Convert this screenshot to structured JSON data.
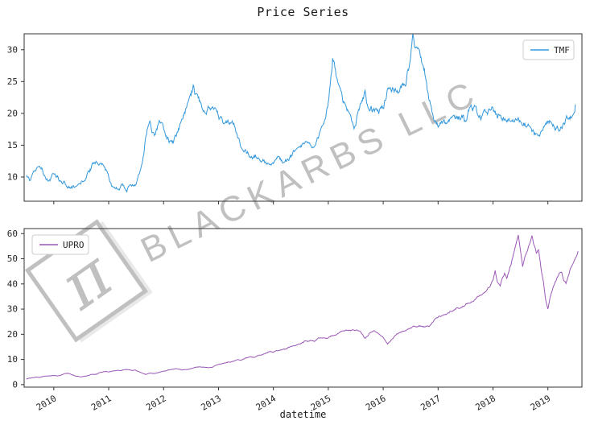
{
  "title": "Price Series",
  "xlabel": "datetime",
  "watermark": {
    "text": "BLACKARBS LLC",
    "symbol": "π"
  },
  "style": {
    "spine_color": "#333333",
    "tick_color": "#262626",
    "legend_border": "#cccccc",
    "tmf_color": "#3498db",
    "upro_color": "#9b59b6"
  },
  "chart_data": [
    {
      "type": "line",
      "series_name": "TMF",
      "color": "#3498db",
      "legend": "upper right",
      "xlim": [
        2009.46,
        2019.62
      ],
      "ylim": [
        6.2,
        32.5
      ],
      "xticks": [
        2010,
        2011,
        2012,
        2013,
        2014,
        2015,
        2016,
        2017,
        2018,
        2019
      ],
      "yticks": [
        10,
        15,
        20,
        25,
        30
      ],
      "points": [
        [
          2009.5,
          10.0
        ],
        [
          2009.58,
          9.2
        ],
        [
          2009.63,
          10.3
        ],
        [
          2009.71,
          11.0
        ],
        [
          2009.79,
          11.3
        ],
        [
          2009.83,
          10.4
        ],
        [
          2009.92,
          9.7
        ],
        [
          2010.0,
          10.7
        ],
        [
          2010.08,
          10.1
        ],
        [
          2010.17,
          9.4
        ],
        [
          2010.25,
          8.8
        ],
        [
          2010.33,
          8.3
        ],
        [
          2010.42,
          8.1
        ],
        [
          2010.5,
          8.8
        ],
        [
          2010.58,
          10.0
        ],
        [
          2010.67,
          11.3
        ],
        [
          2010.71,
          12.0
        ],
        [
          2010.79,
          12.9
        ],
        [
          2010.83,
          12.3
        ],
        [
          2010.92,
          11.0
        ],
        [
          2011.0,
          9.9
        ],
        [
          2011.08,
          8.5
        ],
        [
          2011.17,
          8.0
        ],
        [
          2011.25,
          8.4
        ],
        [
          2011.33,
          7.8
        ],
        [
          2011.42,
          8.5
        ],
        [
          2011.5,
          9.3
        ],
        [
          2011.54,
          10.5
        ],
        [
          2011.63,
          13.5
        ],
        [
          2011.67,
          16.0
        ],
        [
          2011.75,
          19.7
        ],
        [
          2011.79,
          17.8
        ],
        [
          2011.83,
          17.0
        ],
        [
          2011.92,
          19.2
        ],
        [
          2012.0,
          17.2
        ],
        [
          2012.08,
          16.2
        ],
        [
          2012.17,
          15.3
        ],
        [
          2012.25,
          16.3
        ],
        [
          2012.33,
          18.3
        ],
        [
          2012.42,
          20.3
        ],
        [
          2012.5,
          22.3
        ],
        [
          2012.54,
          23.4
        ],
        [
          2012.63,
          21.8
        ],
        [
          2012.67,
          21.0
        ],
        [
          2012.75,
          20.3
        ],
        [
          2012.83,
          21.6
        ],
        [
          2012.92,
          20.2
        ],
        [
          2013.0,
          19.2
        ],
        [
          2013.08,
          18.2
        ],
        [
          2013.17,
          18.9
        ],
        [
          2013.25,
          19.6
        ],
        [
          2013.33,
          17.2
        ],
        [
          2013.42,
          15.2
        ],
        [
          2013.5,
          14.2
        ],
        [
          2013.58,
          13.3
        ],
        [
          2013.67,
          13.9
        ],
        [
          2013.75,
          13.1
        ],
        [
          2013.83,
          12.7
        ],
        [
          2013.92,
          11.9
        ],
        [
          2014.0,
          11.6
        ],
        [
          2014.08,
          12.6
        ],
        [
          2014.17,
          12.3
        ],
        [
          2014.25,
          12.9
        ],
        [
          2014.33,
          13.3
        ],
        [
          2014.42,
          13.7
        ],
        [
          2014.5,
          14.3
        ],
        [
          2014.58,
          14.9
        ],
        [
          2014.67,
          14.6
        ],
        [
          2014.75,
          15.6
        ],
        [
          2014.83,
          16.6
        ],
        [
          2014.92,
          17.6
        ],
        [
          2015.0,
          21.0
        ],
        [
          2015.04,
          24.5
        ],
        [
          2015.08,
          28.4
        ],
        [
          2015.13,
          26.0
        ],
        [
          2015.17,
          24.0
        ],
        [
          2015.25,
          22.2
        ],
        [
          2015.33,
          20.0
        ],
        [
          2015.42,
          18.6
        ],
        [
          2015.5,
          18.2
        ],
        [
          2015.58,
          20.6
        ],
        [
          2015.67,
          22.6
        ],
        [
          2015.71,
          21.4
        ],
        [
          2015.75,
          20.6
        ],
        [
          2015.83,
          20.1
        ],
        [
          2015.92,
          19.6
        ],
        [
          2016.0,
          20.6
        ],
        [
          2016.08,
          23.6
        ],
        [
          2016.17,
          24.6
        ],
        [
          2016.25,
          23.1
        ],
        [
          2016.33,
          23.6
        ],
        [
          2016.42,
          25.1
        ],
        [
          2016.5,
          28.1
        ],
        [
          2016.54,
          31.2
        ],
        [
          2016.58,
          30.1
        ],
        [
          2016.67,
          28.6
        ],
        [
          2016.75,
          27.1
        ],
        [
          2016.83,
          22.1
        ],
        [
          2016.92,
          18.2
        ],
        [
          2017.0,
          17.6
        ],
        [
          2017.08,
          18.6
        ],
        [
          2017.17,
          17.9
        ],
        [
          2017.25,
          18.6
        ],
        [
          2017.33,
          19.1
        ],
        [
          2017.42,
          19.6
        ],
        [
          2017.5,
          19.1
        ],
        [
          2017.58,
          20.6
        ],
        [
          2017.67,
          21.6
        ],
        [
          2017.75,
          20.1
        ],
        [
          2017.83,
          19.6
        ],
        [
          2017.92,
          20.1
        ],
        [
          2018.0,
          21.6
        ],
        [
          2018.08,
          19.1
        ],
        [
          2018.17,
          18.6
        ],
        [
          2018.25,
          18.1
        ],
        [
          2018.33,
          18.9
        ],
        [
          2018.42,
          18.3
        ],
        [
          2018.5,
          18.6
        ],
        [
          2018.58,
          19.1
        ],
        [
          2018.67,
          17.6
        ],
        [
          2018.75,
          16.3
        ],
        [
          2018.83,
          15.8
        ],
        [
          2018.92,
          17.1
        ],
        [
          2019.0,
          18.1
        ],
        [
          2019.08,
          18.6
        ],
        [
          2019.17,
          17.9
        ],
        [
          2019.25,
          18.3
        ],
        [
          2019.33,
          19.6
        ],
        [
          2019.42,
          20.1
        ],
        [
          2019.5,
          21.4
        ]
      ]
    },
    {
      "type": "line",
      "series_name": "UPRO",
      "color": "#9b59b6",
      "legend": "upper left",
      "xlim": [
        2009.46,
        2019.62
      ],
      "ylim": [
        -1,
        62
      ],
      "xticks": [
        2010,
        2011,
        2012,
        2013,
        2014,
        2015,
        2016,
        2017,
        2018,
        2019
      ],
      "yticks": [
        0,
        10,
        20,
        30,
        40,
        50,
        60
      ],
      "points": [
        [
          2009.5,
          2.2
        ],
        [
          2009.58,
          2.6
        ],
        [
          2009.67,
          2.9
        ],
        [
          2009.75,
          3.1
        ],
        [
          2009.83,
          3.2
        ],
        [
          2009.92,
          3.5
        ],
        [
          2010.0,
          3.6
        ],
        [
          2010.08,
          3.4
        ],
        [
          2010.17,
          4.0
        ],
        [
          2010.25,
          4.4
        ],
        [
          2010.33,
          3.8
        ],
        [
          2010.42,
          3.4
        ],
        [
          2010.5,
          3.3
        ],
        [
          2010.58,
          3.6
        ],
        [
          2010.67,
          4.0
        ],
        [
          2010.75,
          4.2
        ],
        [
          2010.83,
          4.5
        ],
        [
          2010.92,
          5.0
        ],
        [
          2011.0,
          5.2
        ],
        [
          2011.08,
          5.5
        ],
        [
          2011.17,
          5.4
        ],
        [
          2011.25,
          5.7
        ],
        [
          2011.33,
          5.8
        ],
        [
          2011.42,
          5.5
        ],
        [
          2011.5,
          5.6
        ],
        [
          2011.58,
          4.6
        ],
        [
          2011.67,
          4.0
        ],
        [
          2011.75,
          4.3
        ],
        [
          2011.83,
          4.6
        ],
        [
          2011.92,
          4.8
        ],
        [
          2012.0,
          5.2
        ],
        [
          2012.08,
          5.8
        ],
        [
          2012.17,
          6.3
        ],
        [
          2012.25,
          6.5
        ],
        [
          2012.33,
          6.0
        ],
        [
          2012.42,
          6.2
        ],
        [
          2012.5,
          6.5
        ],
        [
          2012.58,
          6.9
        ],
        [
          2012.67,
          7.2
        ],
        [
          2012.75,
          7.0
        ],
        [
          2012.83,
          6.8
        ],
        [
          2012.92,
          7.1
        ],
        [
          2013.0,
          7.8
        ],
        [
          2013.08,
          8.2
        ],
        [
          2013.17,
          8.8
        ],
        [
          2013.25,
          9.2
        ],
        [
          2013.33,
          9.8
        ],
        [
          2013.42,
          9.5
        ],
        [
          2013.5,
          10.5
        ],
        [
          2013.58,
          10.8
        ],
        [
          2013.67,
          11.2
        ],
        [
          2013.75,
          11.8
        ],
        [
          2013.83,
          12.5
        ],
        [
          2013.92,
          13.2
        ],
        [
          2014.0,
          13.0
        ],
        [
          2014.08,
          13.8
        ],
        [
          2014.17,
          14.2
        ],
        [
          2014.25,
          14.5
        ],
        [
          2014.33,
          15.2
        ],
        [
          2014.42,
          15.8
        ],
        [
          2014.5,
          16.5
        ],
        [
          2014.58,
          17.2
        ],
        [
          2014.67,
          17.5
        ],
        [
          2014.75,
          16.8
        ],
        [
          2014.83,
          18.5
        ],
        [
          2014.92,
          19.0
        ],
        [
          2015.0,
          18.5
        ],
        [
          2015.08,
          19.5
        ],
        [
          2015.17,
          20.5
        ],
        [
          2015.25,
          20.8
        ],
        [
          2015.33,
          21.5
        ],
        [
          2015.42,
          21.8
        ],
        [
          2015.5,
          22.0
        ],
        [
          2015.58,
          21.0
        ],
        [
          2015.67,
          18.0
        ],
        [
          2015.75,
          20.0
        ],
        [
          2015.83,
          21.0
        ],
        [
          2015.92,
          20.5
        ],
        [
          2016.0,
          19.0
        ],
        [
          2016.08,
          16.5
        ],
        [
          2016.17,
          18.5
        ],
        [
          2016.25,
          20.5
        ],
        [
          2016.33,
          21.0
        ],
        [
          2016.42,
          21.5
        ],
        [
          2016.5,
          22.5
        ],
        [
          2016.58,
          23.0
        ],
        [
          2016.67,
          23.5
        ],
        [
          2016.75,
          23.2
        ],
        [
          2016.83,
          23.0
        ],
        [
          2016.92,
          25.5
        ],
        [
          2017.0,
          26.5
        ],
        [
          2017.08,
          28.0
        ],
        [
          2017.17,
          28.5
        ],
        [
          2017.25,
          29.5
        ],
        [
          2017.33,
          30.5
        ],
        [
          2017.42,
          31.0
        ],
        [
          2017.5,
          32.0
        ],
        [
          2017.58,
          33.0
        ],
        [
          2017.67,
          34.0
        ],
        [
          2017.75,
          35.5
        ],
        [
          2017.83,
          37.0
        ],
        [
          2017.92,
          38.5
        ],
        [
          2018.0,
          41.5
        ],
        [
          2018.04,
          46.0
        ],
        [
          2018.08,
          41.0
        ],
        [
          2018.13,
          39.0
        ],
        [
          2018.17,
          42.0
        ],
        [
          2018.21,
          44.5
        ],
        [
          2018.25,
          42.5
        ],
        [
          2018.29,
          45.0
        ],
        [
          2018.33,
          47.5
        ],
        [
          2018.38,
          52.0
        ],
        [
          2018.42,
          55.0
        ],
        [
          2018.46,
          58.5
        ],
        [
          2018.5,
          53.0
        ],
        [
          2018.54,
          47.5
        ],
        [
          2018.58,
          50.0
        ],
        [
          2018.63,
          54.0
        ],
        [
          2018.67,
          57.0
        ],
        [
          2018.71,
          59.0
        ],
        [
          2018.75,
          55.0
        ],
        [
          2018.79,
          52.0
        ],
        [
          2018.83,
          54.0
        ],
        [
          2018.88,
          45.0
        ],
        [
          2018.92,
          40.0
        ],
        [
          2018.96,
          33.0
        ],
        [
          2019.0,
          29.5
        ],
        [
          2019.04,
          34.0
        ],
        [
          2019.08,
          37.0
        ],
        [
          2019.13,
          40.0
        ],
        [
          2019.17,
          42.0
        ],
        [
          2019.21,
          44.0
        ],
        [
          2019.25,
          45.0
        ],
        [
          2019.29,
          42.0
        ],
        [
          2019.33,
          40.5
        ],
        [
          2019.38,
          44.0
        ],
        [
          2019.42,
          47.0
        ],
        [
          2019.46,
          49.0
        ],
        [
          2019.5,
          51.0
        ],
        [
          2019.55,
          53.0
        ]
      ]
    }
  ]
}
